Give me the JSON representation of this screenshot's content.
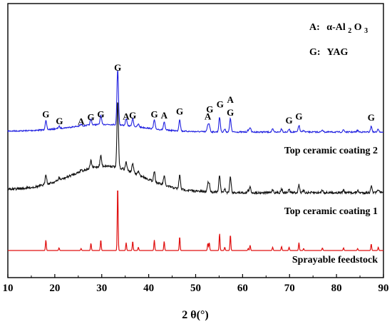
{
  "chart_data": {
    "type": "line",
    "xlabel": "2 θ(°)",
    "xlim": [
      10,
      90
    ],
    "x_ticks": [
      "10",
      "20",
      "30",
      "40",
      "50",
      "60",
      "70",
      "80",
      "90"
    ],
    "yaxis_ticks_shown": false,
    "legend": {
      "position": "top-right",
      "entries": [
        {
          "key": "A:",
          "phase": "α-Al",
          "sub1": "2",
          "mid": "O",
          "sub2": "3"
        },
        {
          "key": "G:",
          "phase": "YAG"
        }
      ]
    },
    "colors": {
      "Top ceramic coating 2": "#2020e0",
      "Top ceramic coating 1": "#111111",
      "Sprayable feedstock": "#e01010"
    },
    "peaks": [
      {
        "x": 18.1,
        "h_ref": 16,
        "phase": "G"
      },
      {
        "x": 20.9,
        "h_ref": 4,
        "phase": "G"
      },
      {
        "x": 25.6,
        "h_ref": 3,
        "phase": "A"
      },
      {
        "x": 27.7,
        "h_ref": 11,
        "phase": "G"
      },
      {
        "x": 29.8,
        "h_ref": 16,
        "phase": "G"
      },
      {
        "x": 33.4,
        "h_ref": 100,
        "phase": "G"
      },
      {
        "x": 35.2,
        "h_ref": 12,
        "phase": "A"
      },
      {
        "x": 36.6,
        "h_ref": 14,
        "phase": "G"
      },
      {
        "x": 37.8,
        "h_ref": 5,
        "phase": ""
      },
      {
        "x": 41.2,
        "h_ref": 16,
        "phase": "G"
      },
      {
        "x": 43.3,
        "h_ref": 14,
        "phase": "A"
      },
      {
        "x": 46.6,
        "h_ref": 21,
        "phase": "G"
      },
      {
        "x": 52.6,
        "h_ref": 11,
        "phase": "A"
      },
      {
        "x": 52.9,
        "h_ref": 12,
        "phase": ""
      },
      {
        "x": 55.1,
        "h_ref": 26,
        "phase": "G"
      },
      {
        "x": 56.2,
        "h_ref": 5,
        "phase": "G"
      },
      {
        "x": 57.4,
        "h_ref": 24,
        "phase": "A"
      },
      {
        "x": 61.2,
        "h_ref": 3,
        "phase": ""
      },
      {
        "x": 61.6,
        "h_ref": 8,
        "phase": ""
      },
      {
        "x": 66.4,
        "h_ref": 5,
        "phase": ""
      },
      {
        "x": 68.3,
        "h_ref": 6,
        "phase": ""
      },
      {
        "x": 69.9,
        "h_ref": 5,
        "phase": "G"
      },
      {
        "x": 72.0,
        "h_ref": 12,
        "phase": "G"
      },
      {
        "x": 73.0,
        "h_ref": 3,
        "phase": ""
      },
      {
        "x": 77.0,
        "h_ref": 4,
        "phase": ""
      },
      {
        "x": 81.5,
        "h_ref": 4,
        "phase": ""
      },
      {
        "x": 84.5,
        "h_ref": 3,
        "phase": ""
      },
      {
        "x": 87.4,
        "h_ref": 10,
        "phase": "G"
      },
      {
        "x": 88.9,
        "h_ref": 5,
        "phase": ""
      }
    ],
    "series": [
      {
        "name": "Top ceramic coating 2",
        "scale": 0.92,
        "broad_hump": 0.11
      },
      {
        "name": "Top ceramic coating 1",
        "scale": 0.95,
        "broad_hump": 0.33
      },
      {
        "name": "Sprayable feedstock",
        "scale": 1.0,
        "broad_hump": 0
      }
    ],
    "phase_labels": [
      {
        "text": "G",
        "x": 18.1
      },
      {
        "text": "G",
        "x": 21.0
      },
      {
        "text": "A",
        "x": 25.6
      },
      {
        "text": "G",
        "x": 27.7
      },
      {
        "text": "G",
        "x": 29.8
      },
      {
        "text": "G",
        "x": 33.4
      },
      {
        "text": "A",
        "x": 35.2
      },
      {
        "text": "G",
        "x": 36.6
      },
      {
        "text": "G",
        "x": 41.2
      },
      {
        "text": "A",
        "x": 43.3
      },
      {
        "text": "G",
        "x": 46.6
      },
      {
        "text": "A",
        "x": 52.6
      },
      {
        "text": "G",
        "x": 53.0
      },
      {
        "text": "G",
        "x": 55.2
      },
      {
        "text": "A",
        "x": 57.4
      },
      {
        "text": "G",
        "x": 57.4
      },
      {
        "text": "G",
        "x": 69.9
      },
      {
        "text": "G",
        "x": 72.0
      },
      {
        "text": "G",
        "x": 87.4
      }
    ]
  }
}
